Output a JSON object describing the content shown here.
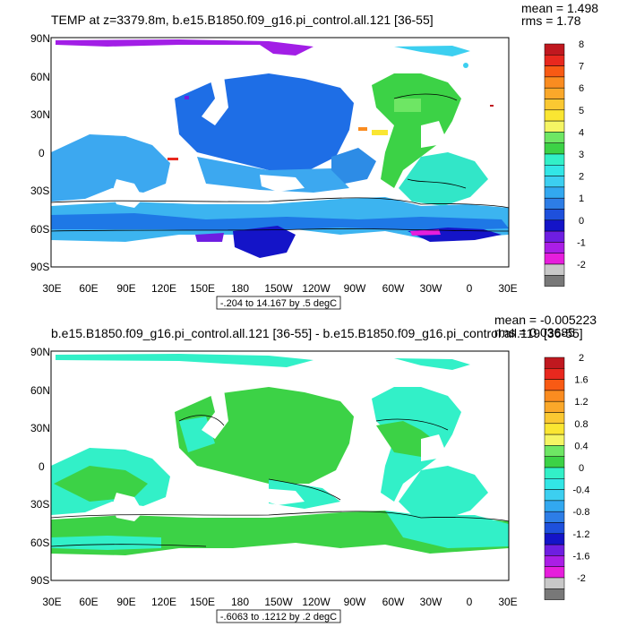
{
  "chart_data": [
    {
      "type": "heatmap",
      "title": "TEMP at z=3379.8m, b.e15.B1850.f09_g16.pi_control.all.121 [36-55]",
      "stats": {
        "mean": "mean = 1.498",
        "rms": "rms = 1.78"
      },
      "contour_note": "-.204 to 14.167 by .5 degC",
      "x_ticks": [
        "30E",
        "60E",
        "90E",
        "120E",
        "150E",
        "180",
        "150W",
        "120W",
        "90W",
        "60W",
        "30W",
        "0",
        "30E"
      ],
      "y_ticks": [
        "90N",
        "60N",
        "30N",
        "0",
        "30S",
        "60S",
        "90S"
      ],
      "colorbar": {
        "labels": [
          "8",
          "7",
          "6",
          "5",
          "4",
          "3",
          "2",
          "1",
          "0",
          "-1",
          "-2"
        ],
        "colors": [
          "#c0181f",
          "#e8281e",
          "#f85a14",
          "#fa8c20",
          "#faa82a",
          "#fac832",
          "#fae632",
          "#f5f564",
          "#6ee664",
          "#3cd246",
          "#32f0c8",
          "#32e6e6",
          "#3ccff0",
          "#32a8f0",
          "#2d7de6",
          "#1e50dc",
          "#1414c8",
          "#6e1ee1",
          "#aa1ee6",
          "#e61edc",
          "#c8c8c8",
          "#787878"
        ]
      }
    },
    {
      "type": "heatmap",
      "title": "b.e15.B1850.f09_g16.pi_control.all.121 [36-55] - b.e15.B1850.f09_g16.pi_control.all.119 [36-55]",
      "stats": {
        "mean": "mean = -0.005223",
        "rms": "rms = 0.03685"
      },
      "contour_note": "-.6063 to .1212 by .2 degC",
      "x_ticks": [
        "30E",
        "60E",
        "90E",
        "120E",
        "150E",
        "180",
        "150W",
        "120W",
        "90W",
        "60W",
        "30W",
        "0",
        "30E"
      ],
      "y_ticks": [
        "90N",
        "60N",
        "30N",
        "0",
        "30S",
        "60S",
        "90S"
      ],
      "colorbar": {
        "labels": [
          "2",
          "1.6",
          "1.2",
          "0.8",
          "0.4",
          "0",
          "-0.4",
          "-0.8",
          "-1.2",
          "-1.6",
          "-2"
        ],
        "colors": [
          "#c0181f",
          "#e8281e",
          "#f85a14",
          "#fa8c20",
          "#faa82a",
          "#fac832",
          "#fae632",
          "#f5f564",
          "#6ee664",
          "#3cd246",
          "#32f0c8",
          "#32e6e6",
          "#3ccff0",
          "#32a8f0",
          "#2d7de6",
          "#1e50dc",
          "#1414c8",
          "#6e1ee1",
          "#aa1ee6",
          "#e61edc",
          "#c8c8c8",
          "#787878"
        ]
      }
    }
  ]
}
